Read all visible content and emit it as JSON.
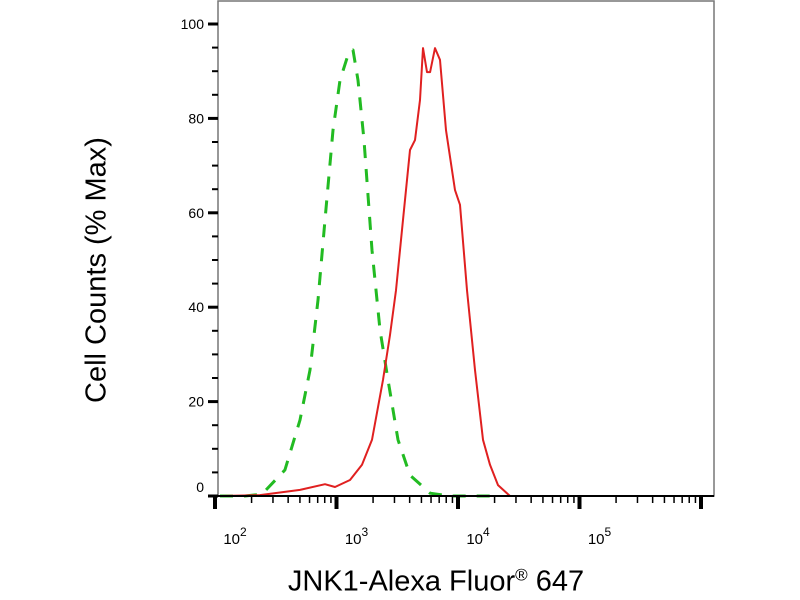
{
  "chart_data": {
    "type": "line",
    "title": "",
    "xlabel": "JNK1-Alexa Fluor® 647",
    "ylabel": "Cell Counts (% Max)",
    "x_scale": "log",
    "xlim": [
      100,
      1250000
    ],
    "ylim": [
      0,
      100
    ],
    "y_ticks": [
      0,
      20,
      40,
      60,
      80,
      100
    ],
    "y_tick_labels": [
      "0",
      "20",
      "40",
      "60",
      "80",
      "100"
    ],
    "x_ticks": [
      100,
      1000,
      10000,
      100000
    ],
    "x_tick_labels": [
      {
        "base": "10",
        "exp": "2"
      },
      {
        "base": "10",
        "exp": "3"
      },
      {
        "base": "10",
        "exp": "4"
      },
      {
        "base": "10",
        "exp": "5"
      }
    ],
    "grid": false,
    "legend": "none",
    "series": [
      {
        "color": "#22bb22",
        "style": "dashed",
        "x": [
          110,
          177,
          244,
          376,
          501,
          605,
          704,
          804,
          936,
          1069,
          1268,
          1367,
          1503,
          1683,
          1960,
          2280,
          2655,
          3208,
          4027,
          5888,
          8590,
          18330
        ],
        "y": [
          0,
          0,
          0.4,
          5.5,
          16.1,
          26.7,
          41.5,
          58.5,
          77.5,
          88.1,
          94.1,
          94.5,
          88.1,
          75.4,
          52.1,
          35.2,
          24.6,
          11.9,
          4.4,
          0.6,
          0,
          0
        ]
      },
      {
        "color": "#e02020",
        "style": "solid",
        "x": [
          110,
          234,
          501,
          804,
          972,
          1291,
          1621,
          1960,
          2413,
          2754,
          3090,
          3527,
          4027,
          4426,
          4864,
          5152,
          5559,
          5888,
          6471,
          7112,
          7962,
          9441,
          10380,
          11860,
          13800,
          16070,
          18330,
          21340,
          26790,
          1250000
        ],
        "y": [
          0,
          0.2,
          1.3,
          2.5,
          1.9,
          3.4,
          6.6,
          11.9,
          24.6,
          34.1,
          43.6,
          58.5,
          73.3,
          75.4,
          83.9,
          94.9,
          89.8,
          89.8,
          94.9,
          92.4,
          77.5,
          64.8,
          61.7,
          43.6,
          26.7,
          11.9,
          6.6,
          2.3,
          0,
          0
        ]
      }
    ]
  }
}
